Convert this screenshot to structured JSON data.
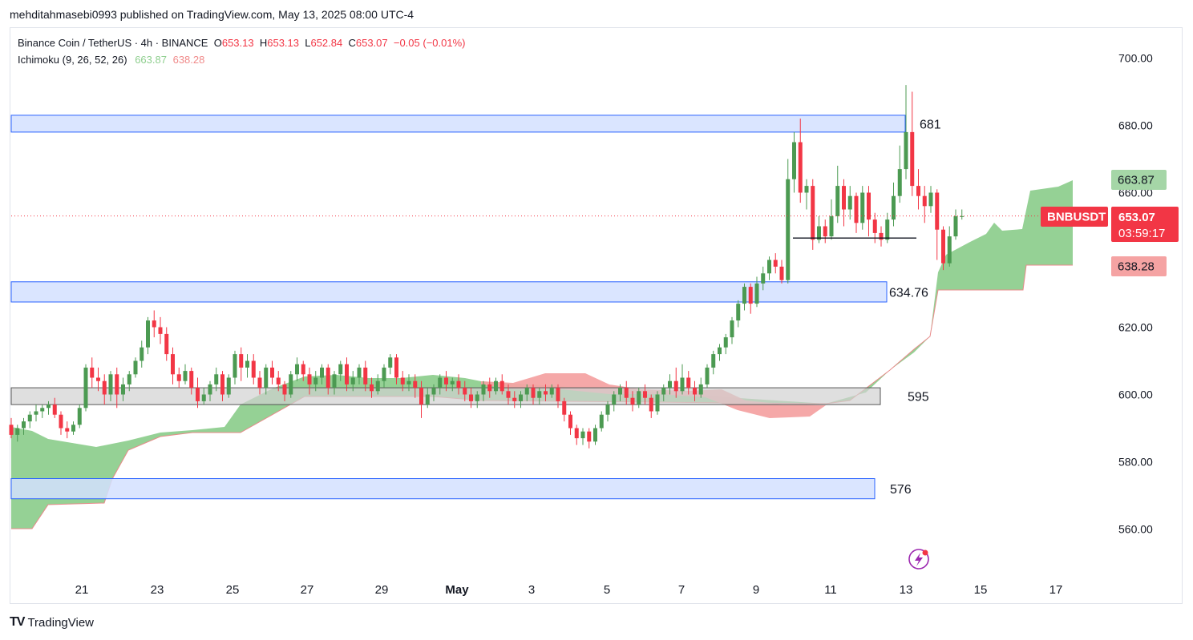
{
  "publisher_line": "mehditahmasebi0993 published on TradingView.com, May 13, 2025 08:00 UTC-4",
  "legend": {
    "symbol": "Binance Coin / TetherUS · 4h · BINANCE",
    "o_label": "O",
    "o_value": "653.13",
    "h_label": "H",
    "h_value": "653.13",
    "l_label": "L",
    "l_value": "652.84",
    "c_label": "C",
    "c_value": "653.07",
    "change": "−0.05 (−0.01%)",
    "indicator": "Ichimoku (9, 26, 52, 26)",
    "ind_value1": "663.87",
    "ind_value2": "638.28"
  },
  "footer": {
    "logo": "TV",
    "brand": "TradingView"
  },
  "colors": {
    "up": "#4c9a52",
    "down": "#f23645",
    "zone_fill": "#d3e0ff",
    "zone_border": "#2962ff",
    "gray_zone": "#d1d1d1",
    "kumo_bull": "#8fcf8f",
    "kumo_bear": "#f4a3a3",
    "tag_green": "#a5d6a7",
    "tag_red": "#f23645",
    "tag_pink": "#f5a3a3"
  },
  "chart_data": {
    "type": "candlestick",
    "title": "Binance Coin / TetherUS · 4h · BINANCE",
    "xlabel": "",
    "ylabel": "",
    "ylim": [
      550,
      710
    ],
    "y_ticks": [
      "700.00",
      "680.00",
      "660.00",
      "620.00",
      "600.00",
      "580.00",
      "560.00"
    ],
    "x_ticks": [
      "21",
      "23",
      "25",
      "27",
      "29",
      "May",
      "3",
      "5",
      "7",
      "9",
      "11",
      "13",
      "15",
      "17"
    ],
    "last_price": 653.07,
    "countdown": "03:59:17",
    "symbol_tag": "BNBUSDT",
    "tenkan_tag": "663.87",
    "kijun_tag": "638.28",
    "price_tag": "653.07",
    "grid": false,
    "zones": [
      {
        "label": "681",
        "low": 678,
        "high": 683,
        "type": "resistance"
      },
      {
        "label": "634.76",
        "low": 627.5,
        "high": 633.5,
        "type": "support"
      },
      {
        "label": "595",
        "low": 597,
        "high": 602,
        "type": "support"
      },
      {
        "label": "576",
        "low": 569,
        "high": 575,
        "type": "support"
      }
    ],
    "support_line": {
      "value": 646.5,
      "date_from": "May 10",
      "date_to": "May 13"
    },
    "candles": [
      [
        591,
        588,
        593,
        587
      ],
      [
        588,
        590,
        591,
        586
      ],
      [
        590,
        592,
        593,
        588
      ],
      [
        592,
        594,
        595,
        590
      ],
      [
        594,
        595,
        597,
        592
      ],
      [
        595,
        596,
        597,
        593
      ],
      [
        596,
        597,
        598,
        594
      ],
      [
        597,
        594,
        599,
        593
      ],
      [
        594,
        590,
        595,
        588
      ],
      [
        590,
        589,
        592,
        587
      ],
      [
        589,
        591,
        592,
        588
      ],
      [
        591,
        596,
        597,
        590
      ],
      [
        596,
        608,
        609,
        595
      ],
      [
        608,
        605,
        611,
        602
      ],
      [
        605,
        604,
        608,
        601
      ],
      [
        604,
        600,
        606,
        597
      ],
      [
        600,
        606,
        607,
        598
      ],
      [
        606,
        600,
        608,
        596
      ],
      [
        600,
        603,
        605,
        598
      ],
      [
        603,
        606,
        607,
        601
      ],
      [
        606,
        610,
        611,
        605
      ],
      [
        610,
        614,
        616,
        608
      ],
      [
        614,
        622,
        623,
        612
      ],
      [
        622,
        620,
        625,
        617
      ],
      [
        620,
        618,
        623,
        615
      ],
      [
        618,
        612,
        620,
        610
      ],
      [
        612,
        606,
        614,
        603
      ],
      [
        606,
        604,
        608,
        602
      ],
      [
        604,
        607,
        609,
        603
      ],
      [
        607,
        602,
        608,
        600
      ],
      [
        602,
        598,
        605,
        596
      ],
      [
        598,
        600,
        602,
        597
      ],
      [
        600,
        603,
        604,
        598
      ],
      [
        603,
        606,
        608,
        601
      ],
      [
        606,
        600,
        607,
        598
      ],
      [
        600,
        605,
        606,
        599
      ],
      [
        605,
        612,
        613,
        603
      ],
      [
        612,
        608,
        614,
        604
      ],
      [
        608,
        610,
        612,
        605
      ],
      [
        610,
        605,
        612,
        603
      ],
      [
        605,
        602,
        607,
        600
      ],
      [
        602,
        608,
        609,
        600
      ],
      [
        608,
        605,
        610,
        603
      ],
      [
        605,
        603,
        607,
        601
      ],
      [
        603,
        600,
        604,
        598
      ],
      [
        600,
        606,
        607,
        599
      ],
      [
        606,
        609,
        611,
        604
      ],
      [
        609,
        606,
        610,
        604
      ],
      [
        606,
        603,
        608,
        600
      ],
      [
        603,
        605,
        607,
        601
      ],
      [
        605,
        608,
        609,
        603
      ],
      [
        608,
        602,
        609,
        600
      ],
      [
        602,
        606,
        607,
        600
      ],
      [
        606,
        609,
        610,
        604
      ],
      [
        609,
        603,
        611,
        601
      ],
      [
        603,
        605,
        607,
        601
      ],
      [
        605,
        608,
        609,
        603
      ],
      [
        608,
        603,
        610,
        601
      ],
      [
        603,
        601,
        605,
        599
      ],
      [
        601,
        604,
        606,
        600
      ],
      [
        604,
        608,
        609,
        602
      ],
      [
        608,
        611,
        612,
        606
      ],
      [
        611,
        605,
        612,
        603
      ],
      [
        605,
        603,
        607,
        601
      ],
      [
        603,
        604,
        606,
        601
      ],
      [
        604,
        602,
        606,
        599
      ],
      [
        602,
        597,
        604,
        593
      ],
      [
        597,
        600,
        602,
        596
      ],
      [
        600,
        602,
        603,
        598
      ],
      [
        602,
        605,
        606,
        600
      ],
      [
        605,
        603,
        607,
        601
      ],
      [
        603,
        604,
        605,
        601
      ],
      [
        604,
        602,
        606,
        600
      ],
      [
        602,
        600,
        604,
        598
      ],
      [
        600,
        598,
        602,
        596
      ],
      [
        598,
        600,
        601,
        596
      ],
      [
        600,
        603,
        604,
        598
      ],
      [
        603,
        601,
        605,
        599
      ],
      [
        601,
        604,
        605,
        600
      ],
      [
        604,
        601,
        606,
        600
      ],
      [
        601,
        599,
        603,
        597
      ],
      [
        599,
        598,
        601,
        596
      ],
      [
        598,
        600,
        601,
        596
      ],
      [
        600,
        602,
        603,
        598
      ],
      [
        602,
        599,
        603,
        597
      ],
      [
        599,
        601,
        602,
        597
      ],
      [
        601,
        600,
        603,
        598
      ],
      [
        600,
        602,
        603,
        599
      ],
      [
        602,
        598,
        603,
        596
      ],
      [
        598,
        594,
        599,
        592
      ],
      [
        594,
        590,
        595,
        588
      ],
      [
        590,
        587,
        591,
        585
      ],
      [
        587,
        589,
        590,
        585
      ],
      [
        589,
        586,
        590,
        584
      ],
      [
        586,
        590,
        591,
        585
      ],
      [
        590,
        594,
        595,
        589
      ],
      [
        594,
        597,
        598,
        592
      ],
      [
        597,
        600,
        601,
        595
      ],
      [
        600,
        602,
        603,
        598
      ],
      [
        602,
        599,
        604,
        597
      ],
      [
        599,
        597,
        601,
        595
      ],
      [
        597,
        601,
        602,
        596
      ],
      [
        601,
        599,
        603,
        597
      ],
      [
        599,
        595,
        600,
        593
      ],
      [
        595,
        600,
        601,
        594
      ],
      [
        600,
        602,
        603,
        598
      ],
      [
        602,
        604,
        606,
        600
      ],
      [
        604,
        601,
        608,
        599
      ],
      [
        601,
        605,
        609,
        600
      ],
      [
        605,
        602,
        607,
        600
      ],
      [
        602,
        600,
        604,
        598
      ],
      [
        600,
        603,
        605,
        599
      ],
      [
        603,
        608,
        609,
        602
      ],
      [
        608,
        612,
        613,
        606
      ],
      [
        612,
        614,
        615,
        610
      ],
      [
        614,
        617,
        618,
        612
      ],
      [
        617,
        622,
        623,
        615
      ],
      [
        622,
        627,
        628,
        620
      ],
      [
        627,
        632,
        633,
        625
      ],
      [
        632,
        627,
        633,
        624
      ],
      [
        627,
        633,
        635,
        626
      ],
      [
        633,
        636,
        638,
        631
      ],
      [
        636,
        640,
        641,
        634
      ],
      [
        640,
        638,
        642,
        636
      ],
      [
        638,
        634,
        640,
        633
      ],
      [
        634,
        664,
        670,
        633
      ],
      [
        664,
        675,
        678,
        660
      ],
      [
        675,
        660,
        682,
        657
      ],
      [
        660,
        662,
        664,
        655
      ],
      [
        662,
        646,
        664,
        643
      ],
      [
        646,
        650,
        653,
        645
      ],
      [
        650,
        647,
        652,
        645
      ],
      [
        647,
        653,
        658,
        646
      ],
      [
        653,
        662,
        668,
        651
      ],
      [
        662,
        655,
        664,
        650
      ],
      [
        655,
        659,
        662,
        652
      ],
      [
        659,
        651,
        660,
        648
      ],
      [
        651,
        660,
        662,
        649
      ],
      [
        660,
        652,
        662,
        647
      ],
      [
        652,
        648,
        654,
        645
      ],
      [
        648,
        646,
        650,
        644
      ],
      [
        646,
        652,
        654,
        645
      ],
      [
        652,
        659,
        663,
        650
      ],
      [
        659,
        667,
        674,
        657
      ],
      [
        667,
        678,
        692,
        664
      ],
      [
        678,
        662,
        690,
        659
      ],
      [
        662,
        659,
        667,
        655
      ],
      [
        659,
        656,
        662,
        651
      ],
      [
        656,
        660,
        662,
        654
      ],
      [
        660,
        649,
        661,
        640
      ],
      [
        649,
        639,
        650,
        637
      ],
      [
        639,
        647,
        650,
        638
      ],
      [
        647,
        653,
        655,
        646
      ],
      [
        653,
        653,
        655,
        652
      ]
    ],
    "tenkan": [
      {
        "x": "Apr 19",
        "y": 591
      },
      {
        "x": "May 9",
        "y": 640
      },
      {
        "x": "May 13",
        "y": 663.87
      }
    ],
    "kijun": [
      {
        "x": "Apr 19",
        "y": 591
      },
      {
        "x": "May 9",
        "y": 630
      },
      {
        "x": "May 13",
        "y": 638.28
      }
    ]
  }
}
